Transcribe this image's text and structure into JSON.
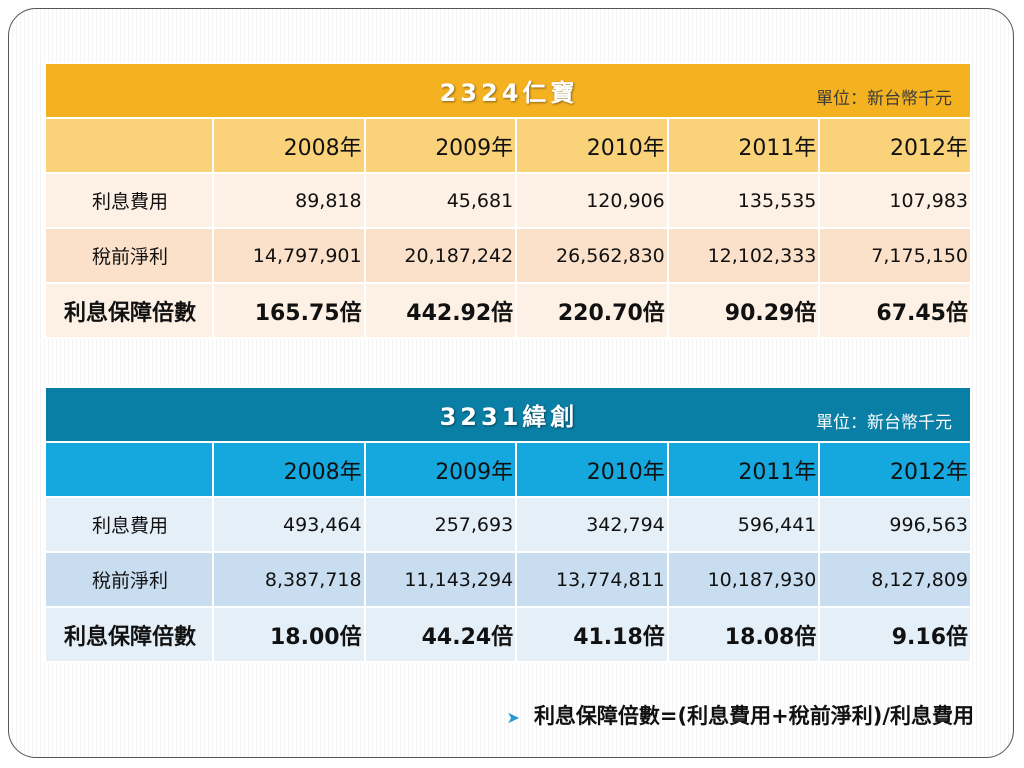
{
  "tables": [
    {
      "title": "2324仁寶",
      "unit": "單位：新台幣千元",
      "years": [
        "2008年",
        "2009年",
        "2010年",
        "2011年",
        "2012年"
      ],
      "rows": [
        {
          "label": "利息費用",
          "values": [
            "89,818",
            "45,681",
            "120,906",
            "135,535",
            "107,983"
          ]
        },
        {
          "label": "稅前淨利",
          "values": [
            "14,797,901",
            "20,187,242",
            "26,562,830",
            "12,102,333",
            "7,175,150"
          ]
        },
        {
          "label": "利息保障倍數",
          "values": [
            "165.75倍",
            "442.92倍",
            "220.70倍",
            "90.29倍",
            "67.45倍"
          ]
        }
      ]
    },
    {
      "title": "3231緯創",
      "unit": "單位：新台幣千元",
      "years": [
        "2008年",
        "2009年",
        "2010年",
        "2011年",
        "2012年"
      ],
      "rows": [
        {
          "label": "利息費用",
          "values": [
            "493,464",
            "257,693",
            "342,794",
            "596,441",
            "996,563"
          ]
        },
        {
          "label": "稅前淨利",
          "values": [
            "8,387,718",
            "11,143,294",
            "13,774,811",
            "10,187,930",
            "8,127,809"
          ]
        },
        {
          "label": "利息保障倍數",
          "values": [
            "18.00倍",
            "44.24倍",
            "41.18倍",
            "18.08倍",
            "9.16倍"
          ]
        }
      ]
    }
  ],
  "note": {
    "bullet_icon": "arrow-bullet-icon",
    "text": "利息保障倍數=(利息費用+稅前淨利)/利息費用"
  }
}
